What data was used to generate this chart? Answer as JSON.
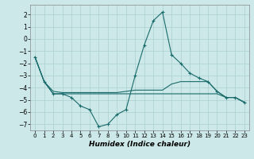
{
  "xlabel": "Humidex (Indice chaleur)",
  "background_color": "#cce8e8",
  "line_color": "#1a6b6b",
  "grid_color": "#aacfcf",
  "xlim": [
    -0.5,
    23.5
  ],
  "ylim": [
    -7.5,
    2.8
  ],
  "yticks": [
    -7,
    -6,
    -5,
    -4,
    -3,
    -2,
    -1,
    0,
    1,
    2
  ],
  "xticks": [
    0,
    1,
    2,
    3,
    4,
    5,
    6,
    7,
    8,
    9,
    10,
    11,
    12,
    13,
    14,
    15,
    16,
    17,
    18,
    19,
    20,
    21,
    22,
    23
  ],
  "line1_x": [
    0,
    1,
    2,
    3,
    4,
    5,
    6,
    7,
    8,
    9,
    10,
    11,
    12,
    13,
    14,
    15,
    16,
    17,
    18,
    19,
    20,
    21,
    22,
    23
  ],
  "line1_y": [
    -1.5,
    -3.5,
    -4.5,
    -4.5,
    -4.8,
    -5.5,
    -5.8,
    -7.2,
    -7.0,
    -6.2,
    -5.8,
    -3.0,
    -0.5,
    1.5,
    2.2,
    -1.3,
    -2.0,
    -2.8,
    -3.2,
    -3.5,
    -4.3,
    -4.8,
    -4.8,
    -5.2
  ],
  "line2_x": [
    0,
    1,
    2,
    3,
    4,
    5,
    6,
    7,
    8,
    9,
    10,
    11,
    12,
    13,
    14,
    15,
    16,
    17,
    18,
    19,
    20,
    21,
    22,
    23
  ],
  "line2_y": [
    -1.5,
    -3.5,
    -4.3,
    -4.4,
    -4.4,
    -4.4,
    -4.4,
    -4.4,
    -4.4,
    -4.4,
    -4.3,
    -4.2,
    -4.2,
    -4.2,
    -4.2,
    -3.7,
    -3.5,
    -3.5,
    -3.5,
    -3.5,
    -4.3,
    -4.8,
    -4.8,
    -5.2
  ],
  "line3_x": [
    0,
    1,
    2,
    3,
    4,
    5,
    6,
    7,
    8,
    9,
    10,
    11,
    12,
    13,
    14,
    15,
    16,
    17,
    18,
    19,
    20,
    21,
    22,
    23
  ],
  "line3_y": [
    -1.5,
    -3.5,
    -4.5,
    -4.5,
    -4.5,
    -4.5,
    -4.5,
    -4.5,
    -4.5,
    -4.5,
    -4.5,
    -4.5,
    -4.5,
    -4.5,
    -4.5,
    -4.5,
    -4.5,
    -4.5,
    -4.5,
    -4.5,
    -4.5,
    -4.8,
    -4.8,
    -5.2
  ]
}
